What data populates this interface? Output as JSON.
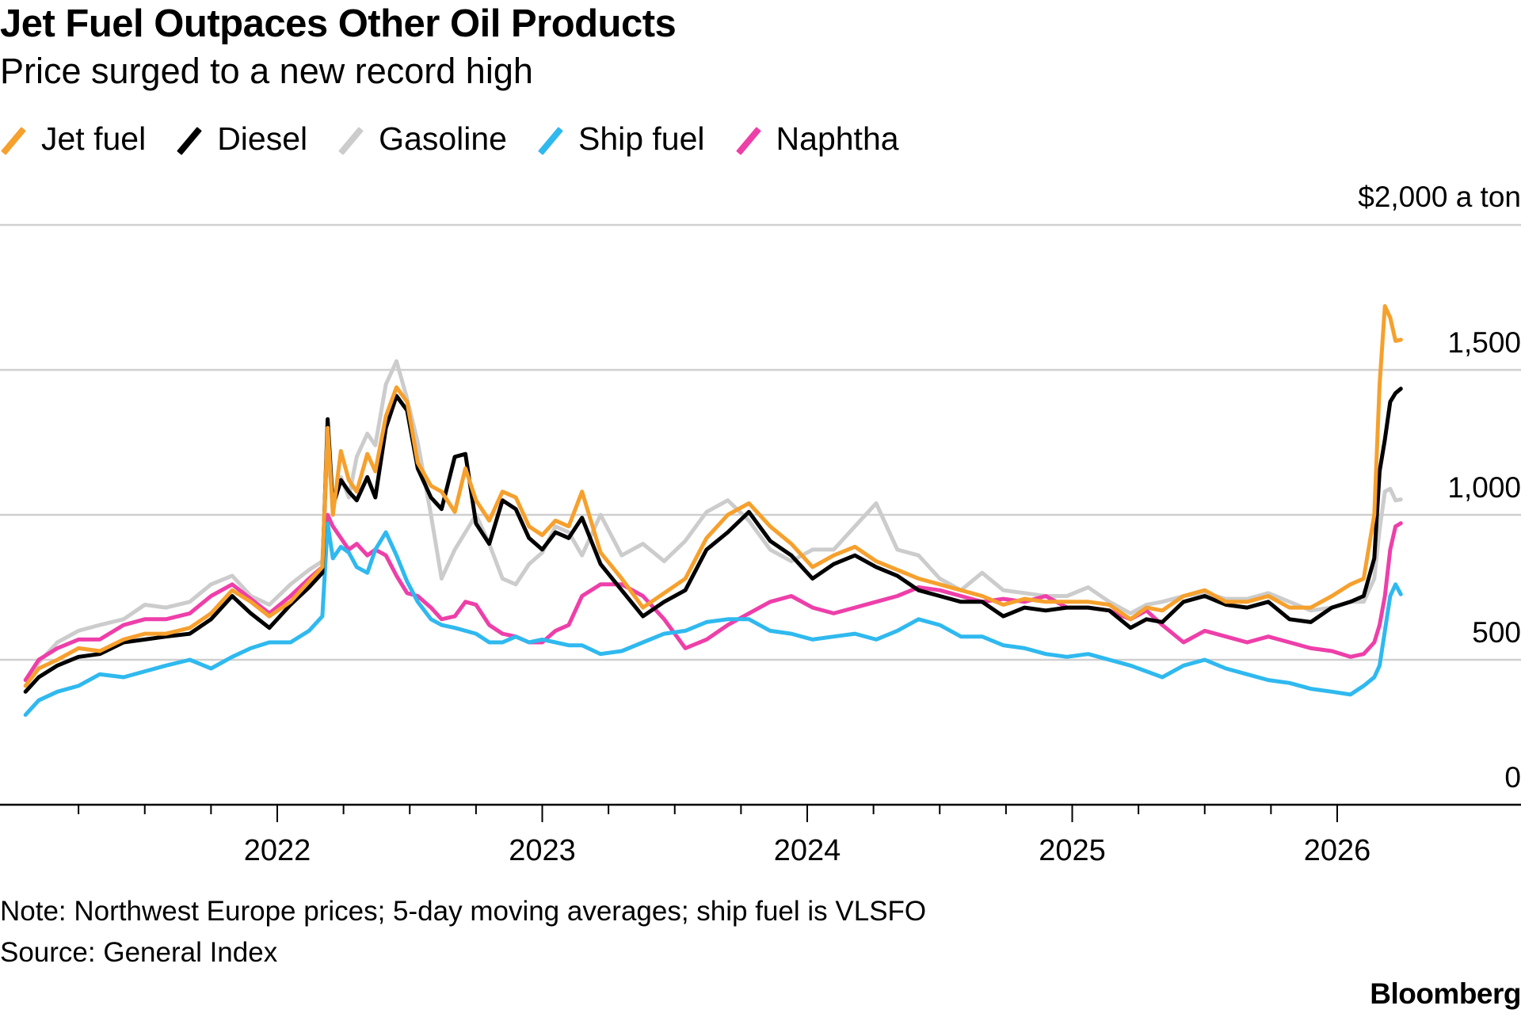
{
  "header": {
    "title": "Jet Fuel Outpaces Other Oil Products",
    "subtitle": "Price surged to a new record high"
  },
  "footer": {
    "note": "Note: Northwest Europe prices; 5-day moving averages; ship fuel is VLSFO",
    "source": "Source: General Index",
    "brand": "Bloomberg"
  },
  "chart_data": {
    "type": "line",
    "title": "Jet Fuel Outpaces Other Oil Products",
    "subtitle": "Price surged to a new record high",
    "xlabel": "",
    "ylabel": "$ a ton",
    "unit_label": "$2,000 a ton",
    "ylim": [
      0,
      2000
    ],
    "xlim": [
      "2021-01-01",
      "2026-04-30"
    ],
    "grid": true,
    "legend_position": "top-left",
    "y_ticks": [
      {
        "value": 0,
        "label": "0"
      },
      {
        "value": 500,
        "label": "500"
      },
      {
        "value": 1000,
        "label": "1,000"
      },
      {
        "value": 1500,
        "label": "1,500"
      },
      {
        "value": 2000,
        "label": "$2,000 a ton"
      }
    ],
    "x_ticks": [
      {
        "value": 2022,
        "label": "2022"
      },
      {
        "value": 2023,
        "label": "2023"
      },
      {
        "value": 2024,
        "label": "2024"
      },
      {
        "value": 2025,
        "label": "2025"
      },
      {
        "value": 2026,
        "label": "2026"
      }
    ],
    "x_minor_ticks": [
      2021.25,
      2021.5,
      2021.75,
      2022.25,
      2022.5,
      2022.75,
      2023.25,
      2023.5,
      2023.75,
      2024.25,
      2024.5,
      2024.75,
      2025.25,
      2025.5,
      2025.75
    ],
    "x": [
      2021.05,
      2021.1,
      2021.17,
      2021.25,
      2021.33,
      2021.42,
      2021.5,
      2021.58,
      2021.67,
      2021.75,
      2021.83,
      2021.9,
      2021.97,
      2022.05,
      2022.12,
      2022.17,
      2022.19,
      2022.21,
      2022.24,
      2022.27,
      2022.3,
      2022.34,
      2022.37,
      2022.41,
      2022.45,
      2022.49,
      2022.53,
      2022.58,
      2022.62,
      2022.67,
      2022.71,
      2022.75,
      2022.8,
      2022.85,
      2022.9,
      2022.95,
      2023.0,
      2023.05,
      2023.1,
      2023.15,
      2023.22,
      2023.3,
      2023.38,
      2023.46,
      2023.54,
      2023.62,
      2023.7,
      2023.78,
      2023.86,
      2023.94,
      2024.02,
      2024.1,
      2024.18,
      2024.26,
      2024.34,
      2024.42,
      2024.5,
      2024.58,
      2024.66,
      2024.74,
      2024.82,
      2024.9,
      2024.98,
      2025.06,
      2025.14,
      2025.22,
      2025.28,
      2025.34,
      2025.42,
      2025.5,
      2025.58,
      2025.66,
      2025.74,
      2025.82,
      2025.9,
      2025.98,
      2026.05,
      2026.1,
      2026.14,
      2026.16,
      2026.18,
      2026.2,
      2026.22,
      2026.24
    ],
    "series": [
      {
        "name": "Jet fuel",
        "color": "#f6a02d",
        "values": [
          410,
          470,
          500,
          540,
          530,
          570,
          590,
          590,
          610,
          660,
          740,
          700,
          650,
          700,
          770,
          820,
          1300,
          1000,
          1220,
          1120,
          1080,
          1210,
          1150,
          1340,
          1440,
          1390,
          1180,
          1100,
          1080,
          1010,
          1160,
          1050,
          980,
          1080,
          1060,
          960,
          930,
          980,
          960,
          1080,
          870,
          780,
          680,
          730,
          780,
          920,
          1000,
          1040,
          960,
          900,
          820,
          860,
          890,
          840,
          810,
          780,
          760,
          740,
          720,
          690,
          710,
          700,
          700,
          700,
          690,
          640,
          680,
          670,
          720,
          740,
          700,
          700,
          720,
          680,
          680,
          720,
          760,
          780,
          1000,
          1450,
          1720,
          1680,
          1600,
          1604
        ]
      },
      {
        "name": "Diesel",
        "color": "#000000",
        "values": [
          390,
          440,
          480,
          510,
          520,
          560,
          570,
          580,
          590,
          640,
          720,
          660,
          610,
          690,
          750,
          800,
          1330,
          1030,
          1120,
          1080,
          1050,
          1130,
          1060,
          1300,
          1410,
          1360,
          1160,
          1060,
          1020,
          1200,
          1210,
          970,
          900,
          1050,
          1020,
          920,
          880,
          940,
          920,
          990,
          830,
          740,
          650,
          700,
          740,
          880,
          940,
          1010,
          910,
          860,
          780,
          830,
          860,
          820,
          790,
          740,
          720,
          700,
          700,
          650,
          680,
          670,
          680,
          680,
          670,
          610,
          640,
          630,
          700,
          720,
          690,
          680,
          700,
          640,
          630,
          680,
          700,
          720,
          850,
          1150,
          1260,
          1390,
          1420,
          1435
        ]
      },
      {
        "name": "Gasoline",
        "color": "#cccccc",
        "values": [
          430,
          490,
          560,
          600,
          620,
          640,
          690,
          680,
          700,
          760,
          790,
          720,
          690,
          760,
          810,
          840,
          1230,
          1050,
          1130,
          1060,
          1200,
          1280,
          1240,
          1450,
          1530,
          1400,
          1250,
          1000,
          780,
          880,
          940,
          1000,
          900,
          780,
          760,
          830,
          870,
          960,
          940,
          860,
          1000,
          860,
          900,
          840,
          910,
          1010,
          1050,
          980,
          880,
          840,
          880,
          880,
          960,
          1040,
          880,
          860,
          780,
          740,
          800,
          740,
          730,
          720,
          720,
          750,
          700,
          660,
          690,
          700,
          720,
          730,
          710,
          710,
          730,
          700,
          670,
          680,
          700,
          700,
          780,
          950,
          1080,
          1090,
          1050,
          1053
        ]
      },
      {
        "name": "Ship fuel",
        "color": "#2fb9ef",
        "values": [
          310,
          360,
          390,
          410,
          450,
          440,
          460,
          480,
          500,
          470,
          510,
          540,
          560,
          560,
          600,
          650,
          970,
          850,
          890,
          870,
          820,
          800,
          880,
          940,
          860,
          770,
          700,
          640,
          620,
          610,
          600,
          590,
          560,
          560,
          580,
          560,
          570,
          560,
          550,
          550,
          520,
          530,
          560,
          590,
          600,
          630,
          640,
          640,
          600,
          590,
          570,
          580,
          590,
          570,
          600,
          640,
          620,
          580,
          580,
          550,
          540,
          520,
          510,
          520,
          500,
          480,
          460,
          440,
          480,
          500,
          470,
          450,
          430,
          420,
          400,
          390,
          380,
          410,
          440,
          480,
          600,
          720,
          760,
          726
        ]
      },
      {
        "name": "Naphtha",
        "color": "#ee3fa9",
        "values": [
          430,
          500,
          540,
          570,
          570,
          620,
          640,
          640,
          660,
          720,
          760,
          710,
          660,
          720,
          780,
          820,
          1000,
          960,
          920,
          880,
          900,
          860,
          880,
          860,
          790,
          730,
          720,
          680,
          640,
          650,
          700,
          690,
          620,
          590,
          580,
          560,
          560,
          600,
          620,
          720,
          760,
          760,
          720,
          640,
          540,
          570,
          620,
          660,
          700,
          720,
          680,
          660,
          680,
          700,
          720,
          750,
          740,
          720,
          700,
          710,
          700,
          720,
          680,
          680,
          670,
          640,
          670,
          620,
          560,
          600,
          580,
          560,
          580,
          560,
          540,
          530,
          510,
          520,
          560,
          620,
          720,
          880,
          960,
          971
        ]
      }
    ]
  }
}
